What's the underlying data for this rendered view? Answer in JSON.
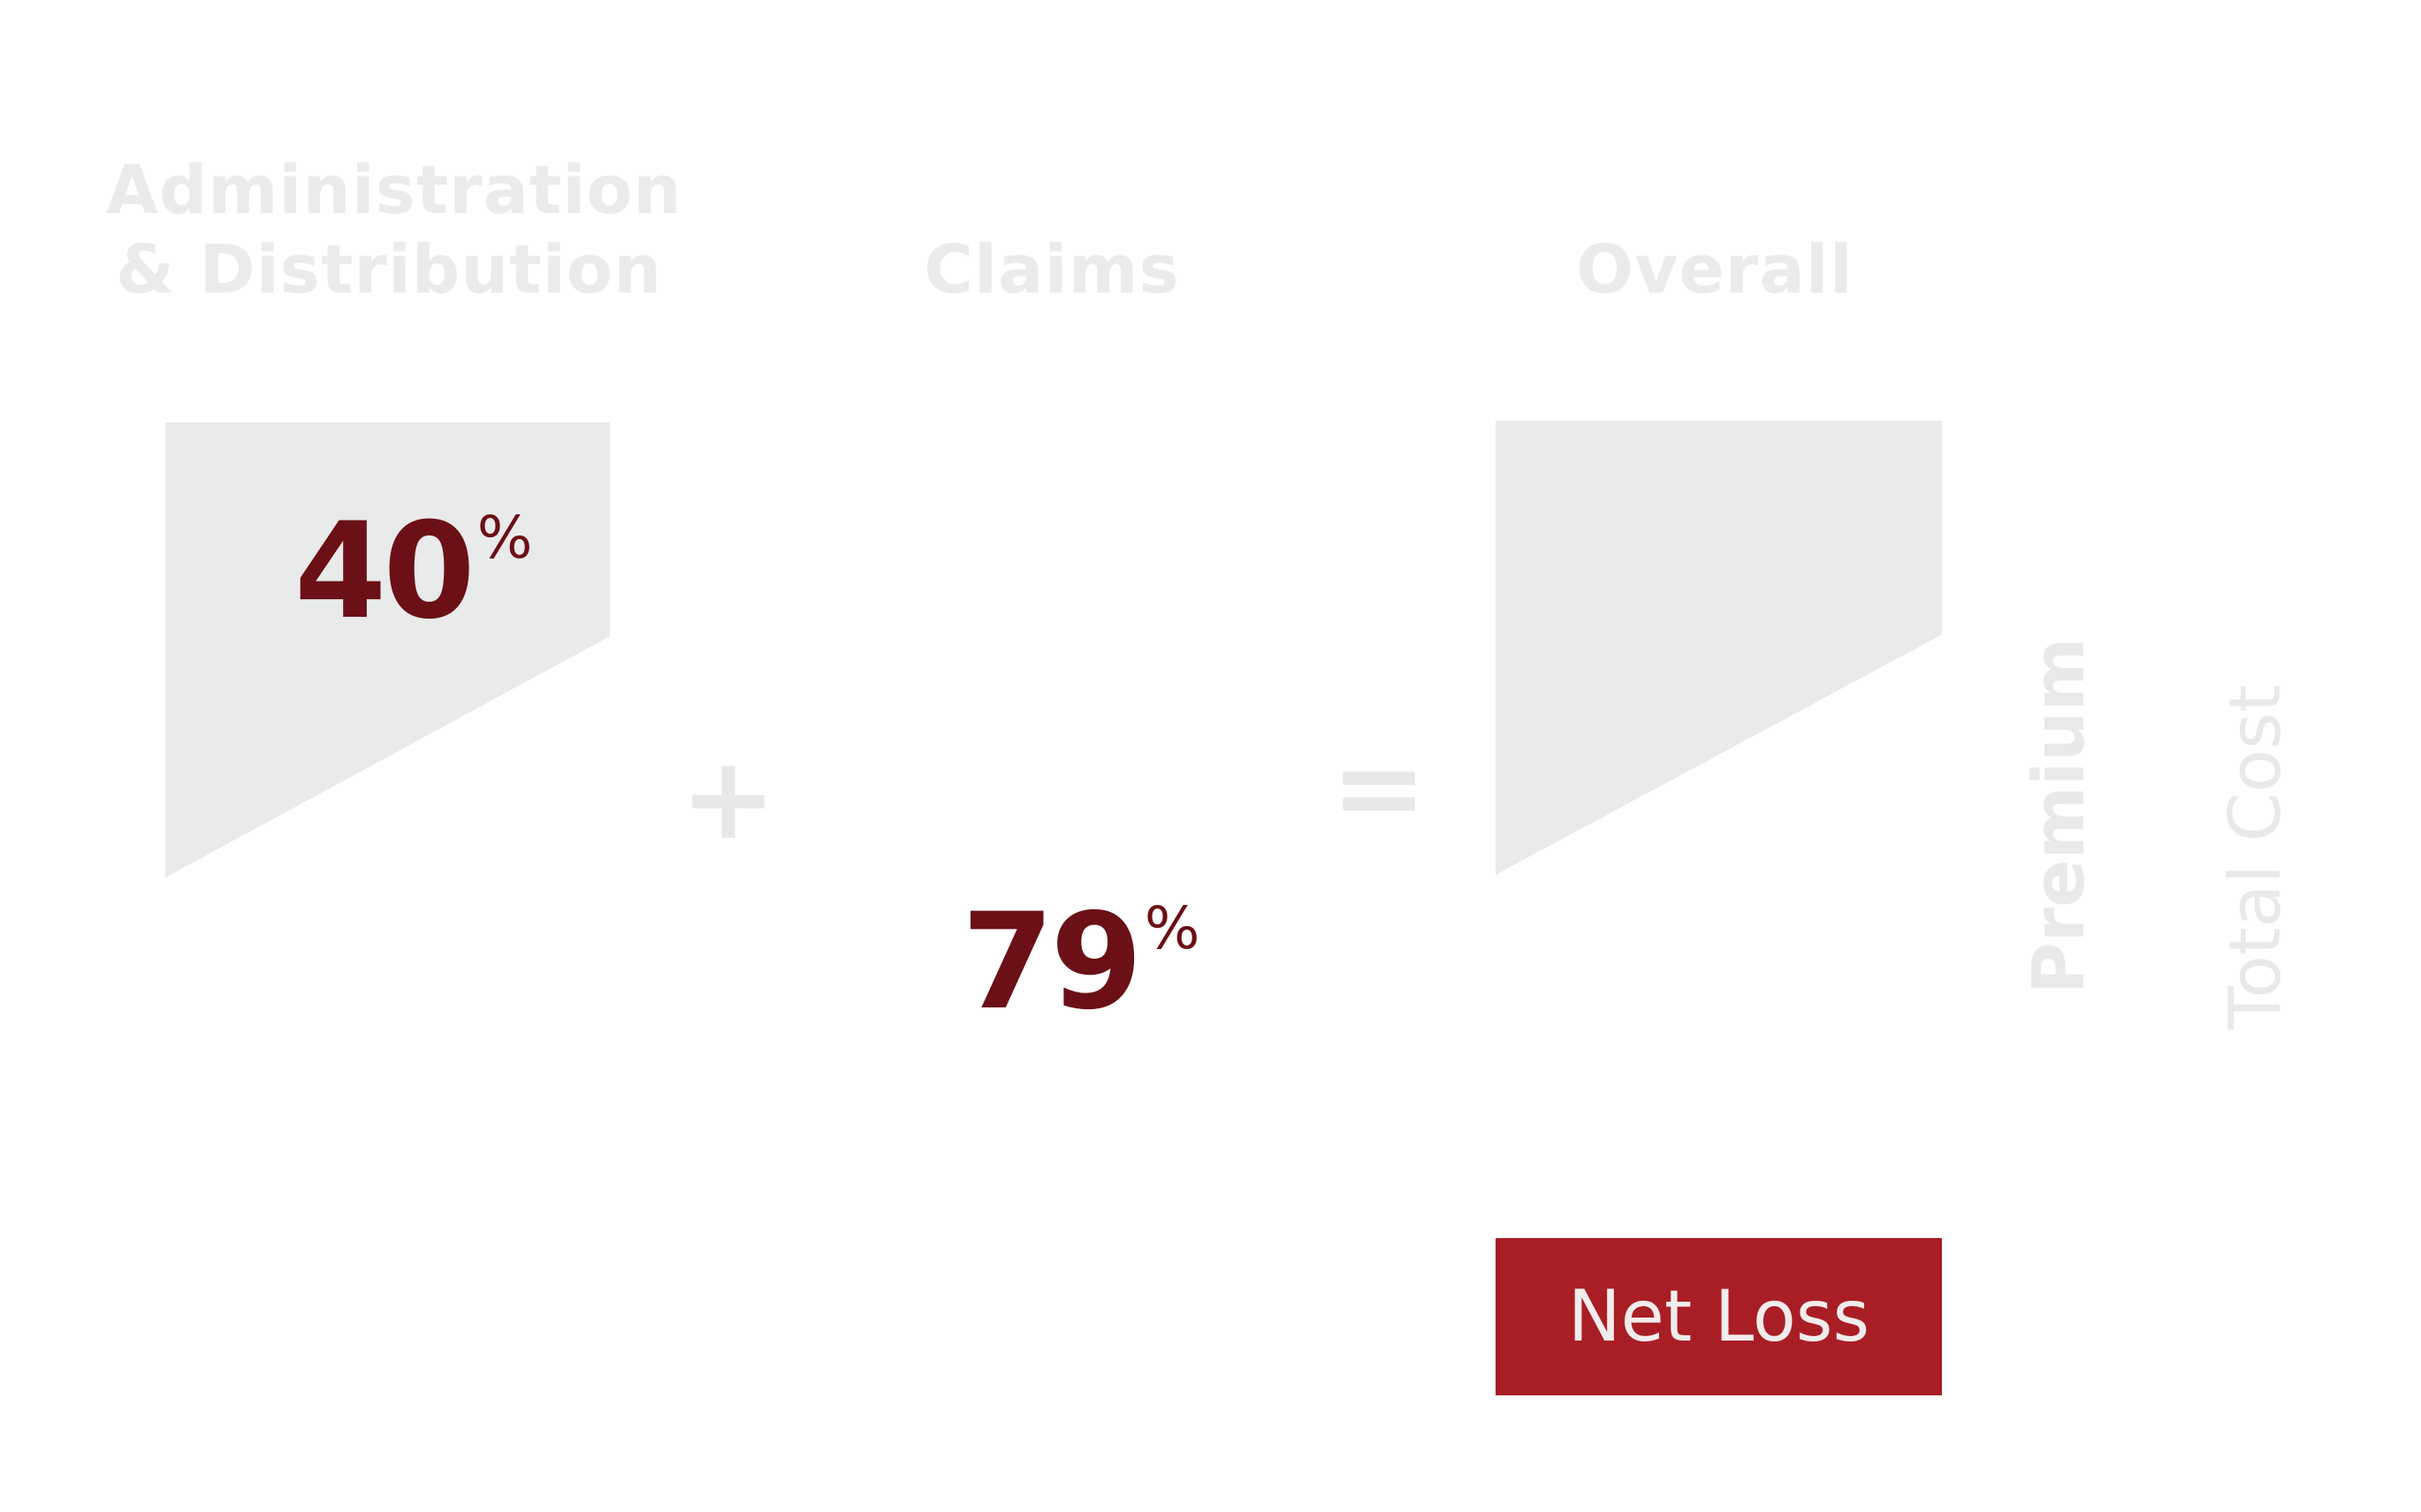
{
  "headers": {
    "admin_line1": "Administration",
    "admin_line2": "& Distribution",
    "claims": "Claims",
    "overall": "Overall"
  },
  "values": {
    "admin_pct": "40",
    "claims_pct": "79",
    "percent_sign": "%"
  },
  "operators": {
    "plus": "+",
    "equals": "="
  },
  "side_labels": {
    "premium": "Premium",
    "total_cost": "Total Cost"
  },
  "result": {
    "label": "Net Loss"
  },
  "colors": {
    "value_text": "#6b1016",
    "shape_fill": "#e9eaea",
    "result_fill": "#a91e25",
    "faded_text": "#ebebeb"
  }
}
